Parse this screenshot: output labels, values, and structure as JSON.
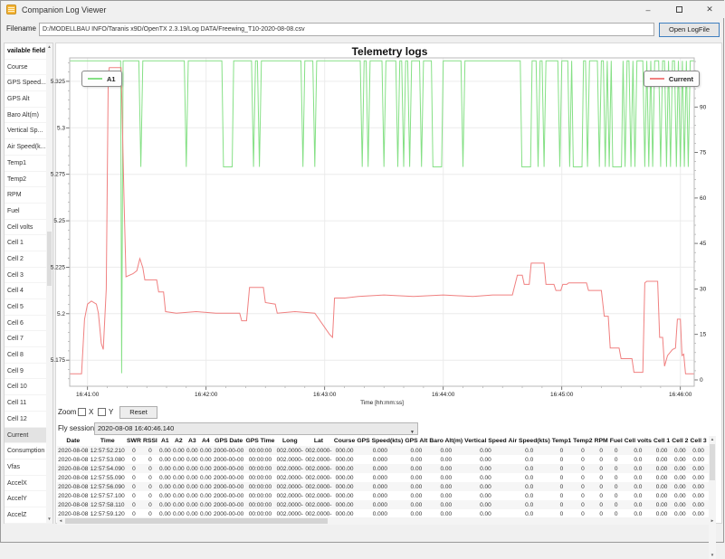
{
  "window": {
    "title": "Companion Log Viewer",
    "minimize": "–",
    "close": "✕"
  },
  "toolbar": {
    "filename_label": "Filename",
    "filename_value": "D:/MODELLBAU INFO/Taranis x9D/OpenTX 2.3.19/Log DATA/Freewing_T10-2020-08-08.csv",
    "open_button": "Open LogFile"
  },
  "sidebar": {
    "header": "vailable field",
    "selected": "Current",
    "items": [
      "Course",
      "GPS Speed...",
      "GPS Alt",
      "Baro Alt(m)",
      "Vertical Sp...",
      "Air Speed(k...",
      "Temp1",
      "Temp2",
      "RPM",
      "Fuel",
      "Cell volts",
      "Cell 1",
      "Cell 2",
      "Cell 3",
      "Cell 4",
      "Cell 5",
      "Cell 6",
      "Cell 7",
      "Cell 8",
      "Cell 9",
      "Cell 10",
      "Cell 11",
      "Cell 12",
      "Current",
      "Consumption",
      "Vfas",
      "AccelX",
      "AccelY",
      "AccelZ"
    ]
  },
  "chart_data": {
    "type": "line",
    "title": "Telemetry logs",
    "xlabel": "Time [hh:mm:ss]",
    "x_ticks": [
      "16:41:00",
      "16:42:00",
      "16:43:00",
      "16:44:00",
      "16:45:00",
      "16:46:00"
    ],
    "x_tick_seconds": [
      0,
      60,
      120,
      180,
      240,
      300
    ],
    "time_range_s": [
      -9,
      307
    ],
    "grid": true,
    "left_axis": {
      "ticks": [
        5.325,
        5.3,
        5.275,
        5.25,
        5.225,
        5.2,
        5.175
      ],
      "range": [
        5.161,
        5.3376
      ],
      "minor_step": 0.005
    },
    "right_axis": {
      "ticks": [
        90,
        75,
        60,
        45,
        30,
        15,
        0
      ],
      "range": [
        -2.1,
        106.2
      ],
      "minor_step": 3
    },
    "series": [
      {
        "name": "A1",
        "color": "#85e085",
        "axis": "left",
        "baseline": 5.336,
        "dip_value": 5.279,
        "initial_drop": {
          "t": 17.3,
          "value": 5.168
        },
        "v_dips_s": [
          27,
          50,
          84,
          87,
          109,
          115,
          139,
          142,
          150,
          157,
          160,
          163,
          169,
          190,
          228,
          231,
          239,
          244,
          253,
          259,
          262,
          264,
          272,
          275,
          277,
          282,
          284,
          286,
          290,
          293,
          295,
          298,
          300,
          302,
          304
        ],
        "square_dips_s": [
          71,
          177,
          222,
          248,
          268
        ]
      },
      {
        "name": "Current",
        "color": "#f08080",
        "axis": "right",
        "points": [
          [
            -9,
            2
          ],
          [
            -3,
            2
          ],
          [
            -1.5,
            20
          ],
          [
            0,
            25
          ],
          [
            2,
            26
          ],
          [
            4.5,
            25
          ],
          [
            5.5,
            22
          ],
          [
            7,
            12
          ],
          [
            8,
            10
          ],
          [
            9.5,
            30
          ],
          [
            10.5,
            100
          ],
          [
            11,
            103
          ],
          [
            17,
            103
          ],
          [
            18.5,
            60
          ],
          [
            19.5,
            34
          ],
          [
            23,
            35
          ],
          [
            25,
            36
          ],
          [
            26.5,
            40
          ],
          [
            28,
            37
          ],
          [
            29,
            33
          ],
          [
            35,
            33
          ],
          [
            36,
            29
          ],
          [
            38.5,
            29
          ],
          [
            39.5,
            22.5
          ],
          [
            45,
            22
          ],
          [
            55,
            22.5
          ],
          [
            65,
            22
          ],
          [
            77,
            22
          ],
          [
            78,
            19.5
          ],
          [
            80.5,
            19.5
          ],
          [
            82,
            30.5
          ],
          [
            89,
            30.5
          ],
          [
            90,
            25.5
          ],
          [
            95,
            25
          ],
          [
            96,
            22
          ],
          [
            105,
            22.5
          ],
          [
            115,
            22
          ],
          [
            122.5,
            15
          ],
          [
            124,
            14
          ],
          [
            125,
            27
          ],
          [
            130,
            27
          ],
          [
            137,
            27.5
          ],
          [
            150,
            28
          ],
          [
            165,
            27.5
          ],
          [
            180,
            28
          ],
          [
            195,
            27.5
          ],
          [
            205,
            28
          ],
          [
            215,
            28
          ],
          [
            217.5,
            34.5
          ],
          [
            220,
            34.5
          ],
          [
            221,
            31.5
          ],
          [
            223.5,
            31.5
          ],
          [
            224.5,
            38.5
          ],
          [
            231,
            38.5
          ],
          [
            232,
            31.5
          ],
          [
            236,
            31.5
          ],
          [
            237,
            29.5
          ],
          [
            239.5,
            29.5
          ],
          [
            240.5,
            31.5
          ],
          [
            242.5,
            31.5
          ],
          [
            243.5,
            32
          ],
          [
            252.5,
            32
          ],
          [
            253.5,
            29.5
          ],
          [
            260,
            29.5
          ],
          [
            261.5,
            21
          ],
          [
            263.5,
            21
          ],
          [
            264.5,
            10.5
          ],
          [
            269,
            10.5
          ],
          [
            270,
            7
          ],
          [
            275.5,
            7
          ],
          [
            276.5,
            2.5
          ],
          [
            281,
            2.5
          ],
          [
            282,
            32
          ],
          [
            283,
            32.5
          ],
          [
            288.5,
            32.5
          ],
          [
            289.5,
            14
          ],
          [
            291,
            14
          ],
          [
            292,
            4.5
          ],
          [
            293.5,
            8
          ],
          [
            296,
            10
          ],
          [
            297.5,
            10.5
          ],
          [
            298.5,
            20
          ],
          [
            300,
            20
          ],
          [
            300.8,
            8
          ],
          [
            301.7,
            8.5
          ],
          [
            302.6,
            2
          ],
          [
            307,
            2
          ]
        ]
      }
    ]
  },
  "controls": {
    "zoom_label": "Zoom",
    "x_label": "X",
    "y_label": "Y",
    "reset_label": "Reset",
    "fly_sessions_label": "Fly sessions",
    "fly_session_value": "2020-08-08 16:40:46.140"
  },
  "table": {
    "headers": [
      "Date",
      "Time",
      "SWR",
      "RSSI",
      "A1",
      "A2",
      "A3",
      "A4",
      "GPS Date",
      "GPS Time",
      "Long",
      "Lat",
      "Course",
      "GPS Speed(kts)",
      "GPS Alt",
      "Baro Alt(m)",
      "Vertical Speed",
      "Air Speed(kts)",
      "Temp1",
      "Temp2",
      "RPM",
      "Fuel",
      "Cell volts",
      "Cell 1",
      "Cell 2",
      "Cell 3",
      "C"
    ],
    "date": "2020-08-08",
    "times": [
      "12:57:52.210",
      "12:57:53.080",
      "12:57:54.090",
      "12:57:55.090",
      "12:57:56.090",
      "12:57:57.100",
      "12:57:58.110",
      "12:57:59.120"
    ],
    "row_defaults": [
      "0",
      "0",
      "0.00",
      "0.00",
      "0.00",
      "0.00",
      "2000-00-00",
      "00:00:00",
      "002.0000-",
      "002.0000-",
      "000.00",
      "0.000",
      "0.00",
      "0.00",
      "0.00",
      "0.0",
      "0",
      "0",
      "0",
      "0",
      "0.0",
      "0.00",
      "0.00",
      "0.00",
      "0"
    ]
  }
}
